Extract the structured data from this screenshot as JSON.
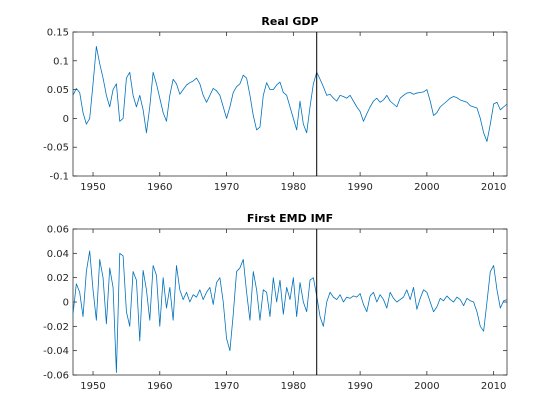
{
  "colors": {
    "series": "#0072bd",
    "axis": "#262626",
    "marker": "#000000"
  },
  "chart_data": [
    {
      "type": "line",
      "title": "Real GDP",
      "xlabel": "",
      "ylabel": "",
      "xlim": [
        1947,
        2012
      ],
      "ylim": [
        -0.1,
        0.15
      ],
      "x_ticks": [
        1950,
        1960,
        1970,
        1980,
        1990,
        2000,
        2010
      ],
      "x_tick_labels": [
        "1950",
        "1960",
        "1970",
        "1980",
        "1990",
        "2000",
        "2010"
      ],
      "y_ticks": [
        -0.1,
        -0.05,
        0,
        0.05,
        0.1,
        0.15
      ],
      "y_tick_labels": [
        "-0.1",
        "-0.05",
        "0",
        "0.05",
        "0.1",
        "0.15"
      ],
      "vertical_line_x": 1983.5,
      "grid": false,
      "series": [
        {
          "x": [
            1947.0,
            1947.5,
            1948.0,
            1948.5,
            1949.0,
            1949.5,
            1950.0,
            1950.5,
            1951.0,
            1951.5,
            1952.0,
            1952.5,
            1953.0,
            1953.5,
            1954.0,
            1954.5,
            1955.0,
            1955.5,
            1956.0,
            1956.5,
            1957.0,
            1957.5,
            1958.0,
            1958.5,
            1959.0,
            1959.5,
            1960.0,
            1960.5,
            1961.0,
            1961.5,
            1962.0,
            1962.5,
            1963.0,
            1963.5,
            1964.0,
            1964.5,
            1965.0,
            1965.5,
            1966.0,
            1966.5,
            1967.0,
            1967.5,
            1968.0,
            1968.5,
            1969.0,
            1969.5,
            1970.0,
            1970.5,
            1971.0,
            1971.5,
            1972.0,
            1972.5,
            1973.0,
            1973.5,
            1974.0,
            1974.5,
            1975.0,
            1975.5,
            1976.0,
            1976.5,
            1977.0,
            1977.5,
            1978.0,
            1978.5,
            1979.0,
            1979.5,
            1980.0,
            1980.5,
            1981.0,
            1981.5,
            1982.0,
            1982.5,
            1983.0,
            1983.5,
            1984.0,
            1984.5,
            1985.0,
            1985.5,
            1986.0,
            1986.5,
            1987.0,
            1987.5,
            1988.0,
            1988.5,
            1989.0,
            1989.5,
            1990.0,
            1990.5,
            1991.0,
            1991.5,
            1992.0,
            1992.5,
            1993.0,
            1993.5,
            1994.0,
            1994.5,
            1995.0,
            1995.5,
            1996.0,
            1996.5,
            1997.0,
            1997.5,
            1998.0,
            1998.5,
            1999.0,
            1999.5,
            2000.0,
            2000.5,
            2001.0,
            2001.5,
            2002.0,
            2002.5,
            2003.0,
            2003.5,
            2004.0,
            2004.5,
            2005.0,
            2005.5,
            2006.0,
            2006.5,
            2007.0,
            2007.5,
            2008.0,
            2008.5,
            2009.0,
            2009.5,
            2010.0,
            2010.5,
            2011.0,
            2011.5,
            2012.0
          ],
          "y": [
            0.04,
            0.052,
            0.045,
            0.01,
            -0.01,
            0.0,
            0.06,
            0.125,
            0.095,
            0.07,
            0.04,
            0.02,
            0.05,
            0.06,
            -0.005,
            0.0,
            0.07,
            0.08,
            0.04,
            0.02,
            0.04,
            0.015,
            -0.025,
            0.02,
            0.08,
            0.06,
            0.035,
            0.01,
            -0.005,
            0.04,
            0.068,
            0.06,
            0.042,
            0.05,
            0.058,
            0.062,
            0.065,
            0.07,
            0.06,
            0.04,
            0.028,
            0.04,
            0.052,
            0.048,
            0.04,
            0.02,
            0.0,
            0.02,
            0.045,
            0.055,
            0.06,
            0.075,
            0.07,
            0.04,
            0.005,
            -0.02,
            -0.015,
            0.04,
            0.062,
            0.05,
            0.05,
            0.058,
            0.063,
            0.045,
            0.04,
            0.02,
            0.0,
            -0.02,
            0.03,
            -0.01,
            -0.025,
            0.02,
            0.06,
            0.08,
            0.068,
            0.055,
            0.04,
            0.042,
            0.035,
            0.03,
            0.04,
            0.038,
            0.035,
            0.04,
            0.03,
            0.02,
            0.012,
            -0.005,
            0.008,
            0.02,
            0.03,
            0.035,
            0.028,
            0.032,
            0.04,
            0.03,
            0.025,
            0.02,
            0.035,
            0.04,
            0.044,
            0.045,
            0.042,
            0.044,
            0.045,
            0.046,
            0.05,
            0.03,
            0.005,
            0.01,
            0.02,
            0.025,
            0.03,
            0.035,
            0.038,
            0.036,
            0.032,
            0.03,
            0.028,
            0.022,
            0.02,
            0.018,
            0.0,
            -0.025,
            -0.04,
            -0.01,
            0.025,
            0.028,
            0.015,
            0.02,
            0.025
          ]
        }
      ]
    },
    {
      "type": "line",
      "title": "First EMD IMF",
      "xlabel": "",
      "ylabel": "",
      "xlim": [
        1947,
        2012
      ],
      "ylim": [
        -0.06,
        0.06
      ],
      "x_ticks": [
        1950,
        1960,
        1970,
        1980,
        1990,
        2000,
        2010
      ],
      "x_tick_labels": [
        "1950",
        "1960",
        "1970",
        "1980",
        "1990",
        "2000",
        "2010"
      ],
      "y_ticks": [
        -0.06,
        -0.04,
        -0.02,
        0,
        0.02,
        0.04,
        0.06
      ],
      "y_tick_labels": [
        "-0.06",
        "-0.04",
        "-0.02",
        "0",
        "0.02",
        "0.04",
        "0.06"
      ],
      "vertical_line_x": 1983.5,
      "grid": false,
      "series": [
        {
          "x": [
            1947.0,
            1947.5,
            1948.0,
            1948.5,
            1949.0,
            1949.5,
            1950.0,
            1950.5,
            1951.0,
            1951.5,
            1952.0,
            1952.5,
            1953.0,
            1953.5,
            1954.0,
            1954.5,
            1955.0,
            1955.5,
            1956.0,
            1956.5,
            1957.0,
            1957.5,
            1958.0,
            1958.5,
            1959.0,
            1959.5,
            1960.0,
            1960.5,
            1961.0,
            1961.5,
            1962.0,
            1962.5,
            1963.0,
            1963.5,
            1964.0,
            1964.5,
            1965.0,
            1965.5,
            1966.0,
            1966.5,
            1967.0,
            1967.5,
            1968.0,
            1968.5,
            1969.0,
            1969.5,
            1970.0,
            1970.5,
            1971.0,
            1971.5,
            1972.0,
            1972.5,
            1973.0,
            1973.5,
            1974.0,
            1974.5,
            1975.0,
            1975.5,
            1976.0,
            1976.5,
            1977.0,
            1977.5,
            1978.0,
            1978.5,
            1979.0,
            1979.5,
            1980.0,
            1980.5,
            1981.0,
            1981.5,
            1982.0,
            1982.5,
            1983.0,
            1983.5,
            1984.0,
            1984.5,
            1985.0,
            1985.5,
            1986.0,
            1986.5,
            1987.0,
            1987.5,
            1988.0,
            1988.5,
            1989.0,
            1989.5,
            1990.0,
            1990.5,
            1991.0,
            1991.5,
            1992.0,
            1992.5,
            1993.0,
            1993.5,
            1994.0,
            1994.5,
            1995.0,
            1995.5,
            1996.0,
            1996.5,
            1997.0,
            1997.5,
            1998.0,
            1998.5,
            1999.0,
            1999.5,
            2000.0,
            2000.5,
            2001.0,
            2001.5,
            2002.0,
            2002.5,
            2003.0,
            2003.5,
            2004.0,
            2004.5,
            2005.0,
            2005.5,
            2006.0,
            2006.5,
            2007.0,
            2007.5,
            2008.0,
            2008.5,
            2009.0,
            2009.5,
            2010.0,
            2010.5,
            2011.0,
            2011.5,
            2012.0
          ],
          "y": [
            -0.01,
            0.015,
            0.008,
            -0.012,
            0.025,
            0.042,
            0.01,
            -0.015,
            0.035,
            0.02,
            -0.018,
            0.028,
            0.012,
            -0.058,
            0.04,
            0.038,
            -0.008,
            -0.02,
            0.025,
            0.018,
            -0.032,
            0.026,
            0.01,
            -0.015,
            0.03,
            0.022,
            -0.02,
            0.02,
            -0.005,
            0.012,
            -0.015,
            0.03,
            0.01,
            0.002,
            0.008,
            0.0,
            0.006,
            0.004,
            0.01,
            0.002,
            0.008,
            0.012,
            -0.002,
            0.016,
            0.02,
            0.0,
            -0.03,
            -0.04,
            -0.01,
            0.025,
            0.028,
            0.035,
            0.008,
            -0.015,
            0.025,
            0.01,
            -0.015,
            0.01,
            0.008,
            -0.012,
            0.02,
            0.0,
            0.018,
            -0.01,
            0.012,
            0.002,
            0.02,
            -0.012,
            0.016,
            0.0,
            -0.008,
            0.018,
            0.02,
            0.005,
            -0.012,
            -0.02,
            0.0,
            0.008,
            0.004,
            0.002,
            0.006,
            0.0,
            0.004,
            0.003,
            0.005,
            0.004,
            0.007,
            -0.002,
            -0.008,
            0.005,
            0.008,
            0.0,
            0.006,
            0.002,
            -0.005,
            0.008,
            0.003,
            0.0,
            0.002,
            0.004,
            0.01,
            0.002,
            0.012,
            -0.006,
            0.003,
            0.01,
            0.008,
            0.0,
            -0.008,
            -0.004,
            0.003,
            0.001,
            0.005,
            0.002,
            0.0,
            0.004,
            0.002,
            -0.003,
            0.003,
            0.001,
            0.0,
            -0.008,
            -0.02,
            -0.024,
            0.0,
            0.025,
            0.03,
            0.01,
            -0.005,
            0.001,
            0.002
          ]
        }
      ]
    }
  ]
}
